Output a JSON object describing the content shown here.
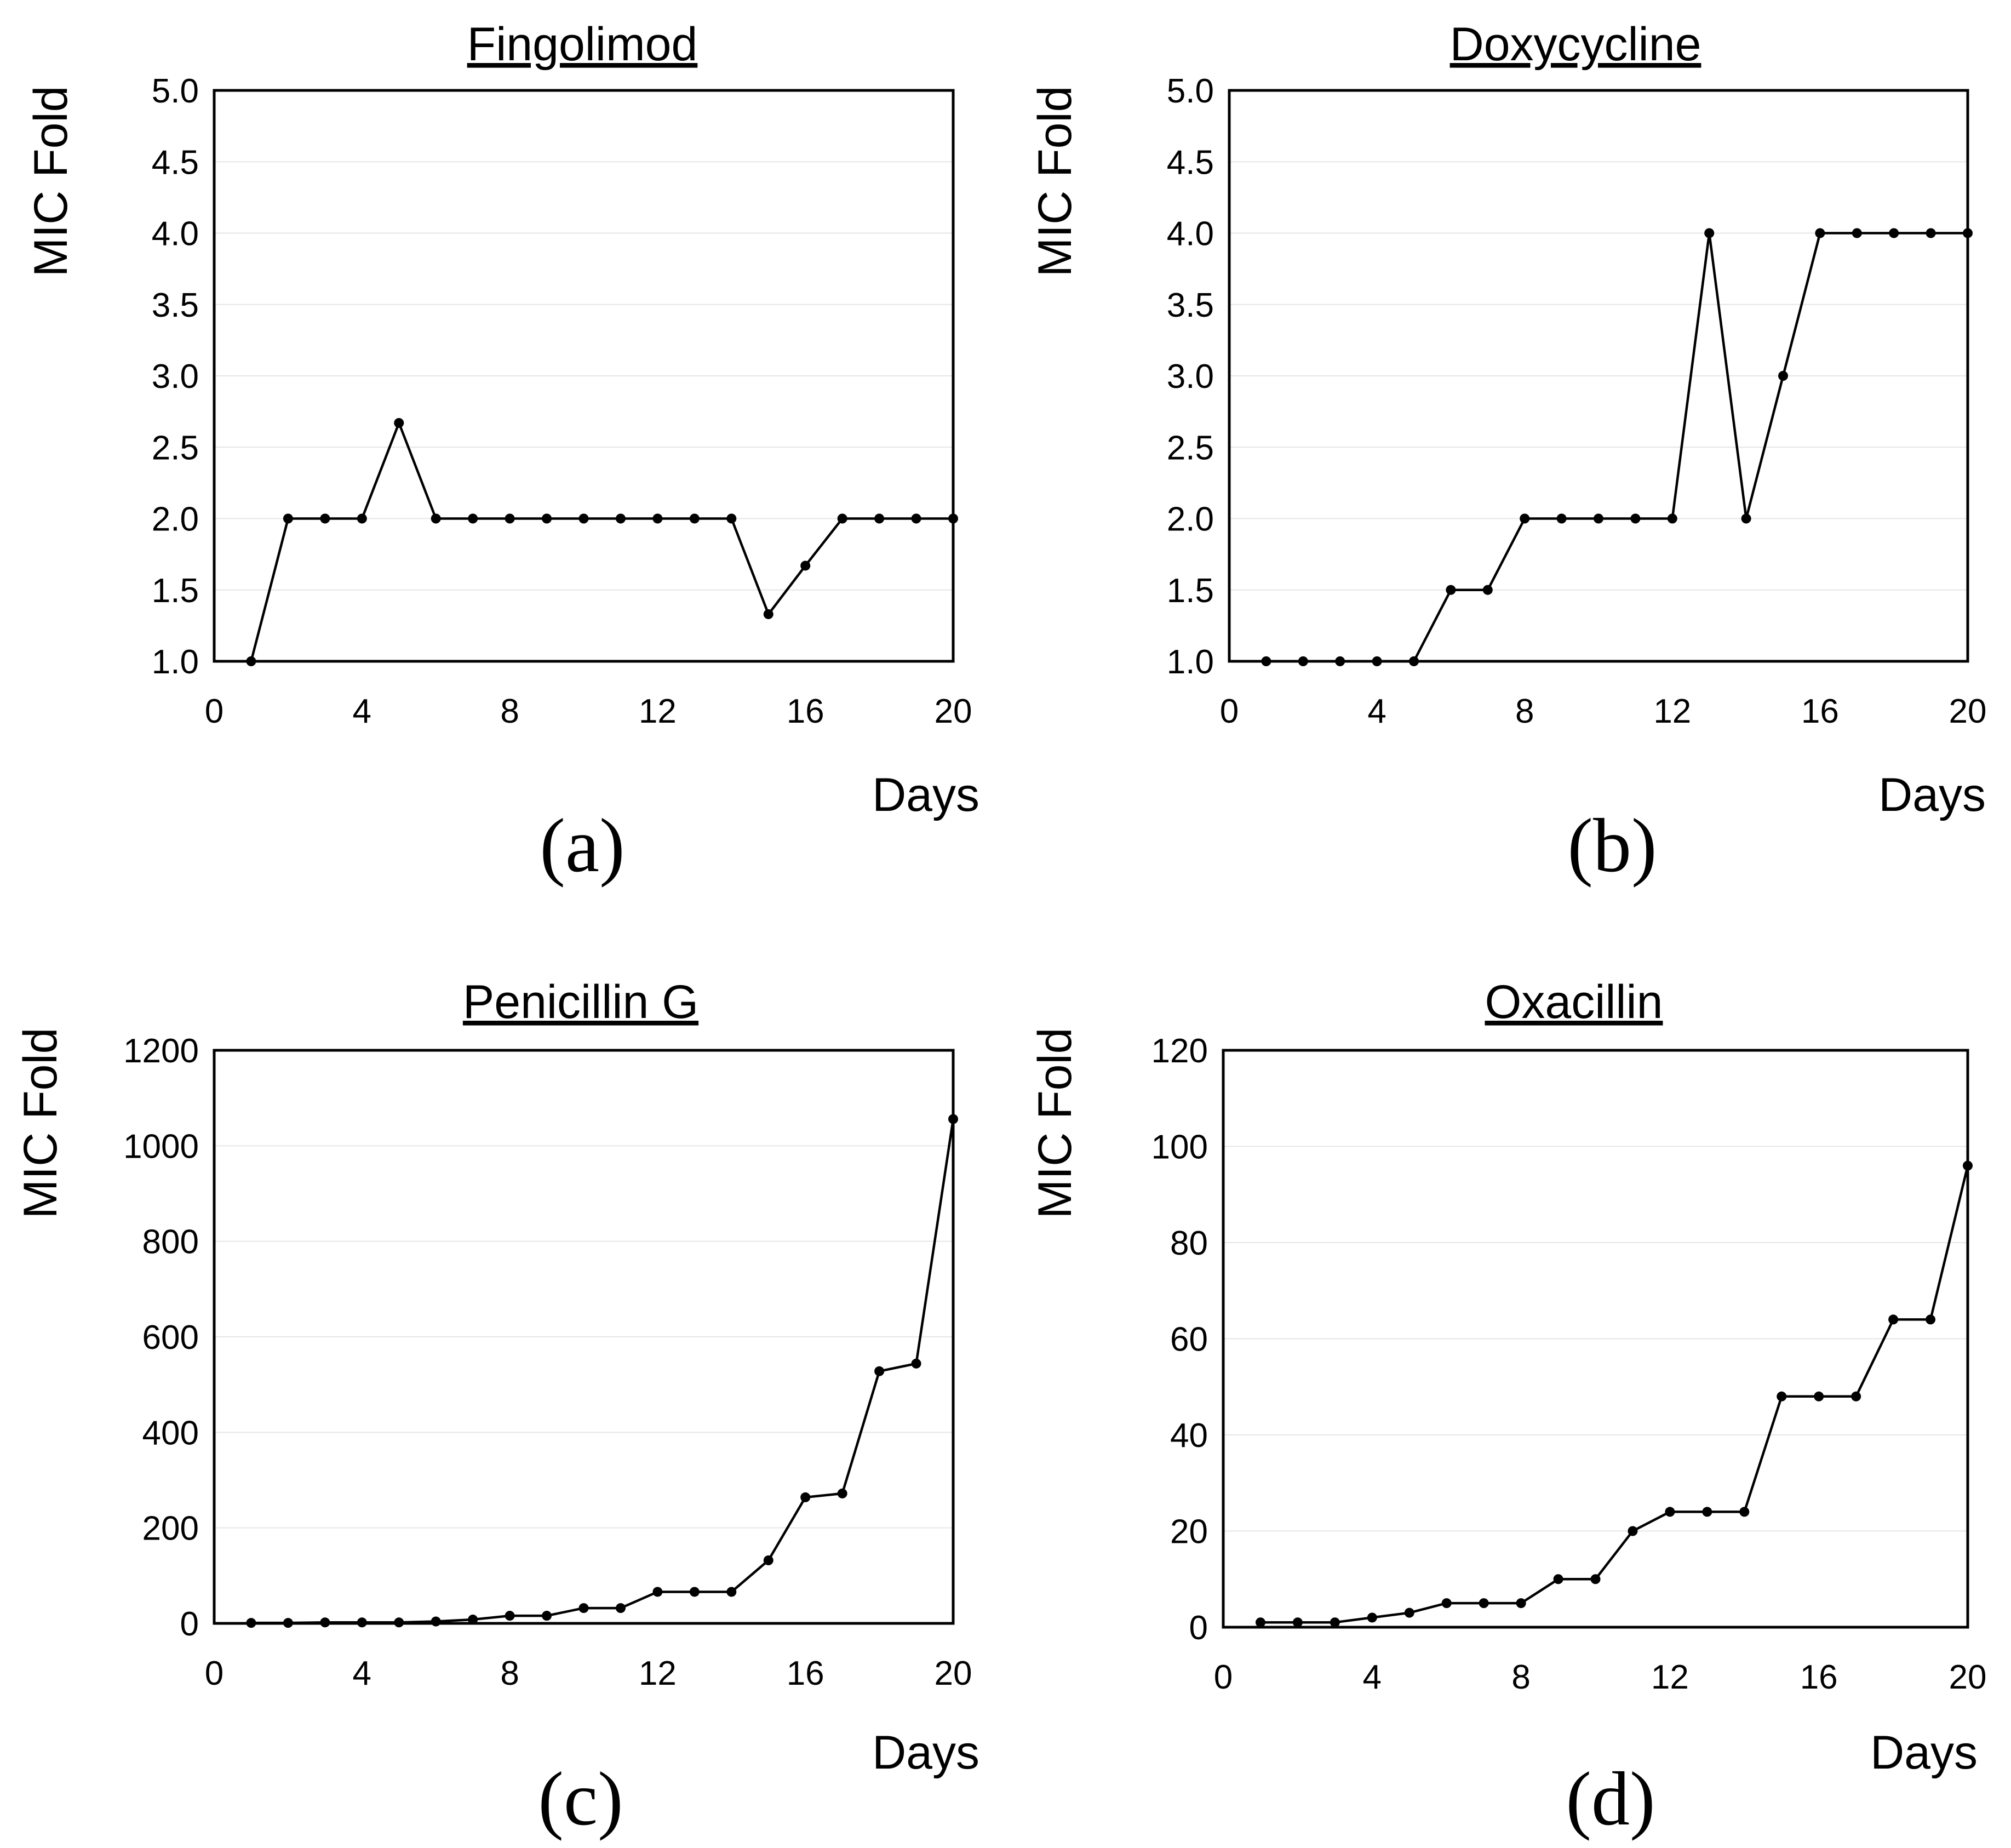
{
  "chart_data": [
    {
      "type": "line",
      "panel": "(a)",
      "title": "Fingolimod",
      "xlabel": "Days",
      "ylabel": "MIC Fold",
      "xlim": [
        0,
        20
      ],
      "xticks": [
        0,
        4,
        8,
        12,
        16,
        20
      ],
      "ylim": [
        1.0,
        5.0
      ],
      "yticks": [
        "1.0",
        "1.5",
        "2.0",
        "2.5",
        "3.0",
        "3.5",
        "4.0",
        "4.5",
        "5.0"
      ],
      "x": [
        1,
        2,
        3,
        4,
        5,
        6,
        7,
        8,
        9,
        10,
        11,
        12,
        13,
        14,
        15,
        16,
        17,
        18,
        19,
        20
      ],
      "values": [
        1.0,
        2.0,
        2.0,
        2.0,
        2.67,
        2.0,
        2.0,
        2.0,
        2.0,
        2.0,
        2.0,
        2.0,
        2.0,
        2.0,
        1.33,
        1.67,
        2.0,
        2.0,
        2.0,
        2.0
      ],
      "grid": true
    },
    {
      "type": "line",
      "panel": "(b)",
      "title": "Doxycycline",
      "xlabel": "Days",
      "ylabel": "MIC Fold",
      "xlim": [
        0,
        20
      ],
      "xticks": [
        0,
        4,
        8,
        12,
        16,
        20
      ],
      "ylim": [
        1.0,
        5.0
      ],
      "yticks": [
        "1.0",
        "1.5",
        "2.0",
        "2.5",
        "3.0",
        "3.5",
        "4.0",
        "4.5",
        "5.0"
      ],
      "x": [
        1,
        2,
        3,
        4,
        5,
        6,
        7,
        8,
        9,
        10,
        11,
        12,
        13,
        14,
        15,
        16,
        17,
        18,
        19,
        20
      ],
      "values": [
        1.0,
        1.0,
        1.0,
        1.0,
        1.0,
        1.5,
        1.5,
        2.0,
        2.0,
        2.0,
        2.0,
        2.0,
        4.0,
        2.0,
        3.0,
        4.0,
        4.0,
        4.0,
        4.0,
        4.0
      ],
      "grid": true
    },
    {
      "type": "line",
      "panel": "(c)",
      "title": "Penicillin G",
      "xlabel": "Days",
      "ylabel": "MIC Fold",
      "xlim": [
        0,
        20
      ],
      "xticks": [
        0,
        4,
        8,
        12,
        16,
        20
      ],
      "ylim": [
        0,
        1200
      ],
      "yticks": [
        "0",
        "200",
        "400",
        "600",
        "800",
        "1000",
        "1200"
      ],
      "x": [
        1,
        2,
        3,
        4,
        5,
        6,
        7,
        8,
        9,
        10,
        11,
        12,
        13,
        14,
        15,
        16,
        17,
        18,
        19,
        20
      ],
      "values": [
        1,
        1,
        2,
        2,
        2,
        4,
        8,
        16,
        16,
        32,
        32,
        66,
        66,
        66,
        132,
        264,
        272,
        528,
        544,
        1056
      ],
      "grid": true
    },
    {
      "type": "line",
      "panel": "(d)",
      "title": "Oxacillin",
      "xlabel": "Days",
      "ylabel": "MIC Fold",
      "xlim": [
        0,
        20
      ],
      "xticks": [
        0,
        4,
        8,
        12,
        16,
        20
      ],
      "ylim": [
        0,
        120
      ],
      "yticks": [
        "0",
        "20",
        "40",
        "60",
        "80",
        "100",
        "120"
      ],
      "x": [
        1,
        2,
        3,
        4,
        5,
        6,
        7,
        8,
        9,
        10,
        11,
        12,
        13,
        14,
        15,
        16,
        17,
        18,
        19,
        20
      ],
      "values": [
        1,
        1,
        1,
        2,
        3,
        5,
        5,
        5,
        10,
        10,
        20,
        24,
        24,
        24,
        48,
        48,
        48,
        64,
        64,
        96
      ],
      "grid": true
    }
  ]
}
